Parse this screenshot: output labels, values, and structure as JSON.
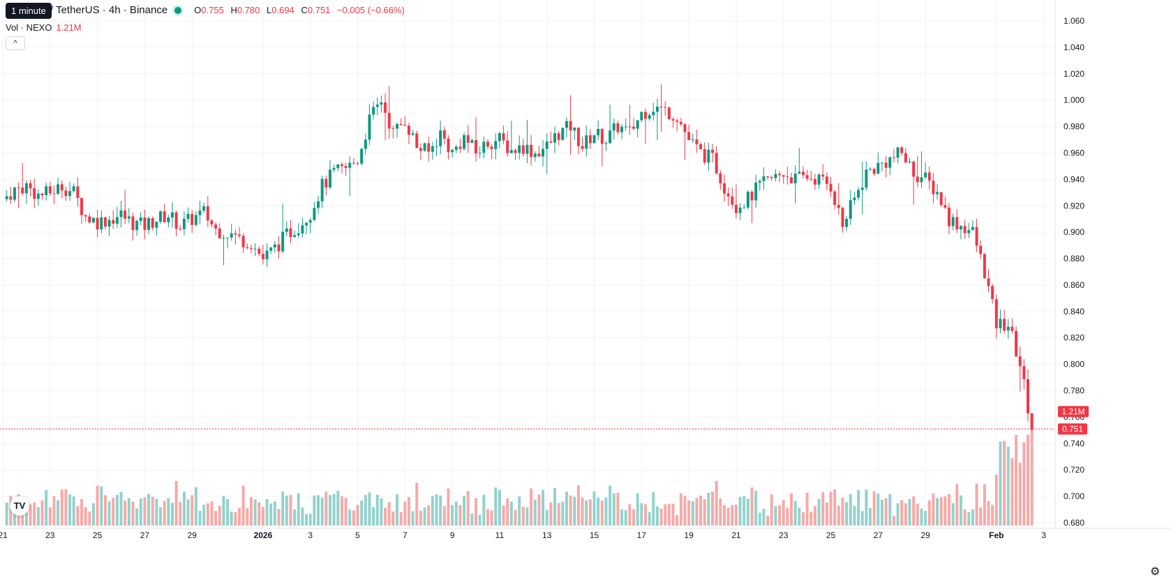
{
  "header": {
    "tooltip": "1 minute",
    "symbol": "/ TetherUS · 4h · Binance",
    "o_label": "O",
    "o_value": "0.755",
    "h_label": "H",
    "h_value": "0.780",
    "l_label": "L",
    "l_value": "0.694",
    "c_label": "C",
    "c_value": "0.751",
    "change": "−0.005 (−0.66%)"
  },
  "volume_legend": {
    "label": "Vol · NEXO",
    "value": "1.21M"
  },
  "colors": {
    "up": "#089981",
    "down": "#f23645",
    "up_vol": "#92d2cc",
    "down_vol": "#f7a9a7",
    "grid": "#f0f3fa"
  },
  "icons": {
    "collapse": "chevron-up-icon",
    "logo": "tradingview-logo-icon",
    "settings": "gear-icon"
  },
  "chart_data": {
    "type": "candlestick",
    "y_axis_ticks": [
      "1.060",
      "1.040",
      "1.020",
      "1.000",
      "0.980",
      "0.960",
      "0.940",
      "0.920",
      "0.900",
      "0.880",
      "0.860",
      "0.840",
      "0.820",
      "0.800",
      "0.780",
      "0.760",
      "0.740",
      "0.720",
      "0.700",
      "0.680"
    ],
    "ylim": [
      0.668,
      1.064
    ],
    "x_axis_ticks": [
      "21",
      "23",
      "25",
      "27",
      "29",
      "2026",
      "3",
      "5",
      "7",
      "9",
      "11",
      "13",
      "15",
      "17",
      "19",
      "21",
      "23",
      "25",
      "27",
      "29",
      "Feb",
      "3"
    ],
    "x_tick_day_index": [
      0,
      2,
      4,
      6,
      8,
      11,
      13,
      15,
      17,
      19,
      21,
      23,
      25,
      27,
      29,
      31,
      33,
      35,
      37,
      39,
      42,
      44
    ],
    "first_day": "Dec 21",
    "interval": "4h",
    "last_price": "0.751",
    "last_volume": "1.21M",
    "grid": true,
    "close_path": [
      [
        0,
        0.925
      ],
      [
        0.5,
        0.932
      ],
      [
        1,
        0.935
      ],
      [
        1.5,
        0.928
      ],
      [
        2,
        0.93
      ],
      [
        2.5,
        0.935
      ],
      [
        3,
        0.93
      ],
      [
        3.5,
        0.912
      ],
      [
        4,
        0.908
      ],
      [
        4.5,
        0.91
      ],
      [
        5,
        0.913
      ],
      [
        5.5,
        0.907
      ],
      [
        6,
        0.905
      ],
      [
        6.5,
        0.91
      ],
      [
        7,
        0.913
      ],
      [
        7.5,
        0.905
      ],
      [
        8,
        0.91
      ],
      [
        8.5,
        0.915
      ],
      [
        9,
        0.902
      ],
      [
        9.5,
        0.9
      ],
      [
        10,
        0.895
      ],
      [
        10.5,
        0.892
      ],
      [
        11,
        0.88
      ],
      [
        11.5,
        0.888
      ],
      [
        12,
        0.898
      ],
      [
        12.5,
        0.905
      ],
      [
        13,
        0.915
      ],
      [
        13.5,
        0.935
      ],
      [
        14,
        0.945
      ],
      [
        14.5,
        0.948
      ],
      [
        15,
        0.955
      ],
      [
        15.5,
        0.985
      ],
      [
        16,
        1.0
      ],
      [
        16.5,
        0.975
      ],
      [
        17,
        0.985
      ],
      [
        17.5,
        0.965
      ],
      [
        18,
        0.96
      ],
      [
        18.5,
        0.975
      ],
      [
        19,
        0.96
      ],
      [
        19.5,
        0.972
      ],
      [
        20,
        0.96
      ],
      [
        20.5,
        0.968
      ],
      [
        21,
        0.97
      ],
      [
        21.5,
        0.962
      ],
      [
        22,
        0.965
      ],
      [
        22.5,
        0.96
      ],
      [
        23,
        0.965
      ],
      [
        23.5,
        0.975
      ],
      [
        24,
        0.98
      ],
      [
        24.5,
        0.965
      ],
      [
        25,
        0.975
      ],
      [
        25.5,
        0.97
      ],
      [
        26,
        0.98
      ],
      [
        26.5,
        0.975
      ],
      [
        27,
        0.99
      ],
      [
        27.5,
        0.995
      ],
      [
        28,
        0.992
      ],
      [
        28.5,
        0.988
      ],
      [
        29,
        0.97
      ],
      [
        29.5,
        0.96
      ],
      [
        30,
        0.955
      ],
      [
        30.5,
        0.935
      ],
      [
        31,
        0.92
      ],
      [
        31.5,
        0.925
      ],
      [
        32,
        0.935
      ],
      [
        32.5,
        0.94
      ],
      [
        33,
        0.945
      ],
      [
        33.5,
        0.94
      ],
      [
        34,
        0.942
      ],
      [
        34.5,
        0.94
      ],
      [
        35,
        0.935
      ],
      [
        35.5,
        0.905
      ],
      [
        36,
        0.925
      ],
      [
        36.5,
        0.945
      ],
      [
        37,
        0.95
      ],
      [
        37.5,
        0.955
      ],
      [
        38,
        0.96
      ],
      [
        38.5,
        0.945
      ],
      [
        39,
        0.94
      ],
      [
        39.5,
        0.93
      ],
      [
        40,
        0.91
      ],
      [
        40.5,
        0.905
      ],
      [
        41,
        0.9
      ],
      [
        41.5,
        0.87
      ],
      [
        42,
        0.83
      ],
      [
        42.5,
        0.83
      ],
      [
        43,
        0.8
      ],
      [
        43.5,
        0.751
      ]
    ],
    "volume_ylim": [
      0,
      1.3
    ],
    "volume_range_note": ""
  }
}
